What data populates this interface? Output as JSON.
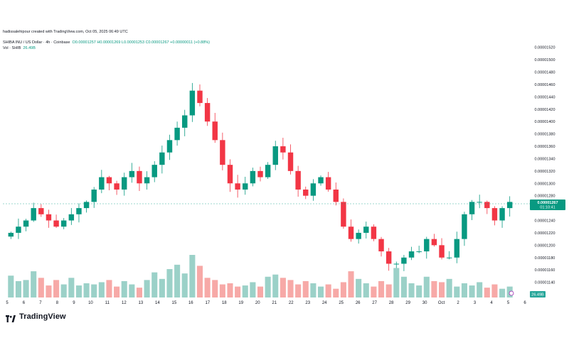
{
  "header": {
    "credit": "hadissalehipour created with TradingView.com, Oct 05, 2025 06:49 UTC",
    "symbol": "SHIBA INU / US Dollar · 4h · Coinbase",
    "ohlc": "O0.00001257 H0.00001269 L0.00001253 C0.00001267 +0.00000011 (+0.88%)",
    "volume_label": "Vol · SHIB",
    "volume_value": "26.49B"
  },
  "brand": {
    "name": "TradingView"
  },
  "colors": {
    "up": "#089981",
    "down": "#f23645",
    "vol_up": "#9bd1c8",
    "vol_down": "#f7a9a7",
    "price_line": "#089981"
  },
  "chart_data": {
    "type": "candlestick",
    "title": "SHIBA INU / US Dollar · 4h · Coinbase",
    "xlabel": "",
    "ylabel": "",
    "ylim": [
      1.12e-05,
      1.53e-05
    ],
    "y_ticks": [
      "0.00001520",
      "0.00001500",
      "0.00001480",
      "0.00001460",
      "0.00001440",
      "0.00001420",
      "0.00001400",
      "0.00001380",
      "0.00001360",
      "0.00001340",
      "0.00001320",
      "0.00001300",
      "0.00001280",
      "0.00001260",
      "0.00001240",
      "0.00001220",
      "0.00001200",
      "0.00001180",
      "0.00001160",
      "0.00001140"
    ],
    "x_ticks": [
      "5",
      "6",
      "7",
      "8",
      "9",
      "10",
      "11",
      "12",
      "13",
      "14",
      "15",
      "16",
      "17",
      "18",
      "19",
      "20",
      "21",
      "22",
      "23",
      "24",
      "25",
      "26",
      "27",
      "28",
      "29",
      "30",
      "Oct",
      "2",
      "3",
      "4",
      "5",
      "6"
    ],
    "last_price": "0.00001267",
    "countdown": "01:10:41",
    "volume_badge": "26.49B",
    "closes": [
      1.22e-05,
      1.23e-05,
      1.24e-05,
      1.26e-05,
      1.25e-05,
      1.24e-05,
      1.23e-05,
      1.24e-05,
      1.25e-05,
      1.26e-05,
      1.27e-05,
      1.29e-05,
      1.31e-05,
      1.3e-05,
      1.29e-05,
      1.31e-05,
      1.32e-05,
      1.3e-05,
      1.31e-05,
      1.33e-05,
      1.35e-05,
      1.37e-05,
      1.39e-05,
      1.41e-05,
      1.45e-05,
      1.43e-05,
      1.4e-05,
      1.37e-05,
      1.33e-05,
      1.3e-05,
      1.29e-05,
      1.3e-05,
      1.32e-05,
      1.31e-05,
      1.33e-05,
      1.36e-05,
      1.35e-05,
      1.32e-05,
      1.29e-05,
      1.28e-05,
      1.3e-05,
      1.31e-05,
      1.29e-05,
      1.27e-05,
      1.23e-05,
      1.21e-05,
      1.22e-05,
      1.23e-05,
      1.21e-05,
      1.19e-05,
      1.17e-05,
      1.17e-05,
      1.18e-05,
      1.19e-05,
      1.19e-05,
      1.21e-05,
      1.2e-05,
      1.18e-05,
      1.18e-05,
      1.21e-05,
      1.25e-05,
      1.27e-05,
      1.27e-05,
      1.26e-05,
      1.24e-05,
      1.26e-05,
      1.27e-05
    ],
    "volumes": [
      2.0,
      1.5,
      1.6,
      2.4,
      1.8,
      1.1,
      1.6,
      1.2,
      1.8,
      1.1,
      1.3,
      1.2,
      1.4,
      1.6,
      1.0,
      1.5,
      1.2,
      0.9,
      1.6,
      2.3,
      1.7,
      2.6,
      3.0,
      2.2,
      3.9,
      2.9,
      1.8,
      1.6,
      1.2,
      1.3,
      1.0,
      1.1,
      1.4,
      1.0,
      1.9,
      2.1,
      1.8,
      1.6,
      1.2,
      1.5,
      1.3,
      1.0,
      1.2,
      0.8,
      1.4,
      2.4,
      1.7,
      1.3,
      1.0,
      1.5,
      1.2,
      2.7,
      1.9,
      1.3,
      1.1,
      1.9,
      1.5,
      1.4,
      1.7,
      1.0,
      1.3,
      1.1,
      1.4,
      0.9,
      1.2,
      0.8,
      1.0
    ]
  }
}
